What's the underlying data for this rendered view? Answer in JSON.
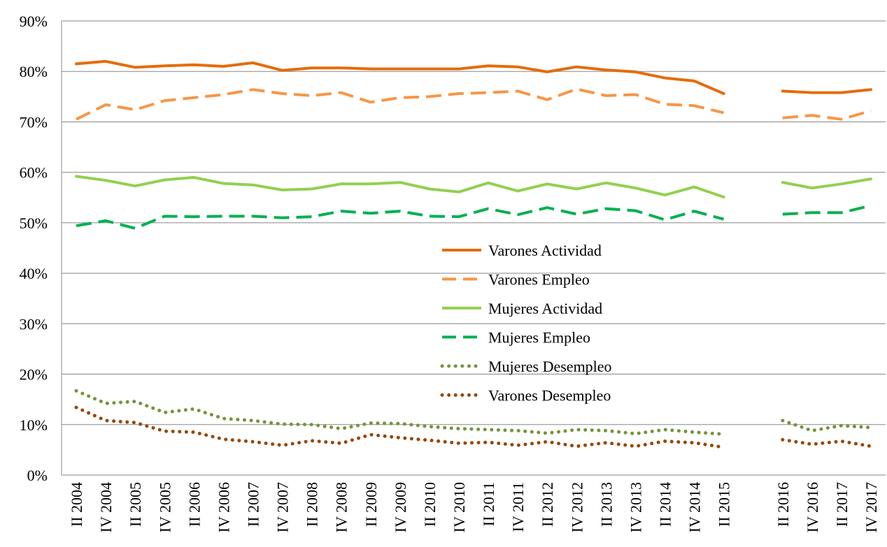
{
  "chart_data": {
    "type": "line",
    "categories": [
      "II 2004",
      "IV 2004",
      "II 2005",
      "IV 2005",
      "II 2006",
      "IV 2006",
      "II 2007",
      "IV 2007",
      "II 2008",
      "IV 2008",
      "II 2009",
      "IV 2009",
      "II 2010",
      "IV 2010",
      "II 2011",
      "IV 2011",
      "II 2012",
      "IV 2012",
      "II 2013",
      "IV 2013",
      "II 2014",
      "IV 2014",
      "II 2015",
      null,
      "II 2016",
      "IV 2016",
      "II 2017",
      "IV 2017"
    ],
    "series": [
      {
        "name": "Varones Actividad",
        "color": "#e46c0a",
        "style": "solid",
        "values": [
          81.5,
          82,
          80.8,
          81.1,
          81.3,
          81,
          81.7,
          80.2,
          80.7,
          80.7,
          80.5,
          80.5,
          80.5,
          80.5,
          81.1,
          80.9,
          79.9,
          80.9,
          80.3,
          79.9,
          78.7,
          78.1,
          75.6,
          null,
          76.1,
          75.8,
          75.8,
          76.4
        ]
      },
      {
        "name": "Varones Empleo",
        "color": "#f79646",
        "style": "dashed",
        "values": [
          70.5,
          73.4,
          72.4,
          74.2,
          74.8,
          75.4,
          76.4,
          75.6,
          75.2,
          75.8,
          73.9,
          74.8,
          75,
          75.6,
          75.8,
          76.1,
          74.4,
          76.5,
          75.2,
          75.4,
          73.5,
          73.2,
          71.8,
          null,
          70.8,
          71.3,
          70.5,
          72.2
        ]
      },
      {
        "name": "Mujeres Actividad",
        "color": "#92d050",
        "style": "solid",
        "values": [
          59.2,
          58.4,
          57.3,
          58.5,
          59,
          57.8,
          57.5,
          56.5,
          56.7,
          57.7,
          57.7,
          58,
          56.7,
          56.1,
          57.9,
          56.3,
          57.7,
          56.7,
          57.9,
          56.9,
          55.5,
          57.1,
          55.1,
          null,
          58,
          56.9,
          57.7,
          58.7
        ]
      },
      {
        "name": "Mujeres Empleo",
        "color": "#00b050",
        "style": "dashed",
        "values": [
          49.4,
          50.4,
          48.9,
          51.3,
          51.2,
          51.3,
          51.3,
          51,
          51.2,
          52.3,
          51.9,
          52.3,
          51.3,
          51.2,
          52.8,
          51.6,
          53,
          51.7,
          52.8,
          52.4,
          50.6,
          52.3,
          50.7,
          null,
          51.7,
          52,
          52,
          53.4
        ]
      },
      {
        "name": "Mujeres Desempleo",
        "color": "#77933c",
        "style": "dotted",
        "values": [
          16.7,
          14.2,
          14.6,
          12.4,
          13.1,
          11.2,
          10.8,
          10.1,
          10,
          9.2,
          10.3,
          10.2,
          9.6,
          9.2,
          9,
          8.8,
          8.3,
          9,
          8.8,
          8.2,
          9,
          8.5,
          8.1,
          null,
          10.8,
          8.8,
          9.8,
          9.4
        ]
      },
      {
        "name": "Varones Desempleo",
        "color": "#984807",
        "style": "dotted",
        "values": [
          13.4,
          10.8,
          10.4,
          8.7,
          8.5,
          7.1,
          6.6,
          5.9,
          6.8,
          6.3,
          8,
          7.4,
          6.9,
          6.3,
          6.5,
          5.9,
          6.6,
          5.7,
          6.4,
          5.7,
          6.7,
          6.4,
          5.5,
          null,
          7,
          6.1,
          6.7,
          5.7
        ]
      }
    ],
    "ylim": [
      0,
      90
    ],
    "yticks": [
      {
        "value": 0,
        "label": "0%"
      },
      {
        "value": 10,
        "label": "10%"
      },
      {
        "value": 20,
        "label": "20%"
      },
      {
        "value": 30,
        "label": "30%"
      },
      {
        "value": 40,
        "label": "40%"
      },
      {
        "value": 50,
        "label": "50%"
      },
      {
        "value": 60,
        "label": "60%"
      },
      {
        "value": 70,
        "label": "70%"
      },
      {
        "value": 80,
        "label": "80%"
      },
      {
        "value": 90,
        "label": "90%"
      }
    ],
    "grid": true,
    "legend": "center"
  }
}
